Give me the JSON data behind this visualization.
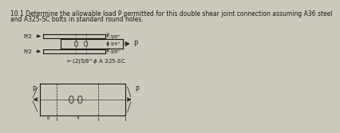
{
  "bg_color": "#cdc8be",
  "text_color": "#1a1a1a",
  "line_color": "#1a1a1a",
  "title_line1": "10.1 Determine the allowable load P permitted for this double shear joint connection assuming A36 steel",
  "title_line2": "and A325-SC bolts in standard round holes.",
  "title_fontsize": 5.5,
  "fig_width": 3.5,
  "fig_height": 1.47
}
